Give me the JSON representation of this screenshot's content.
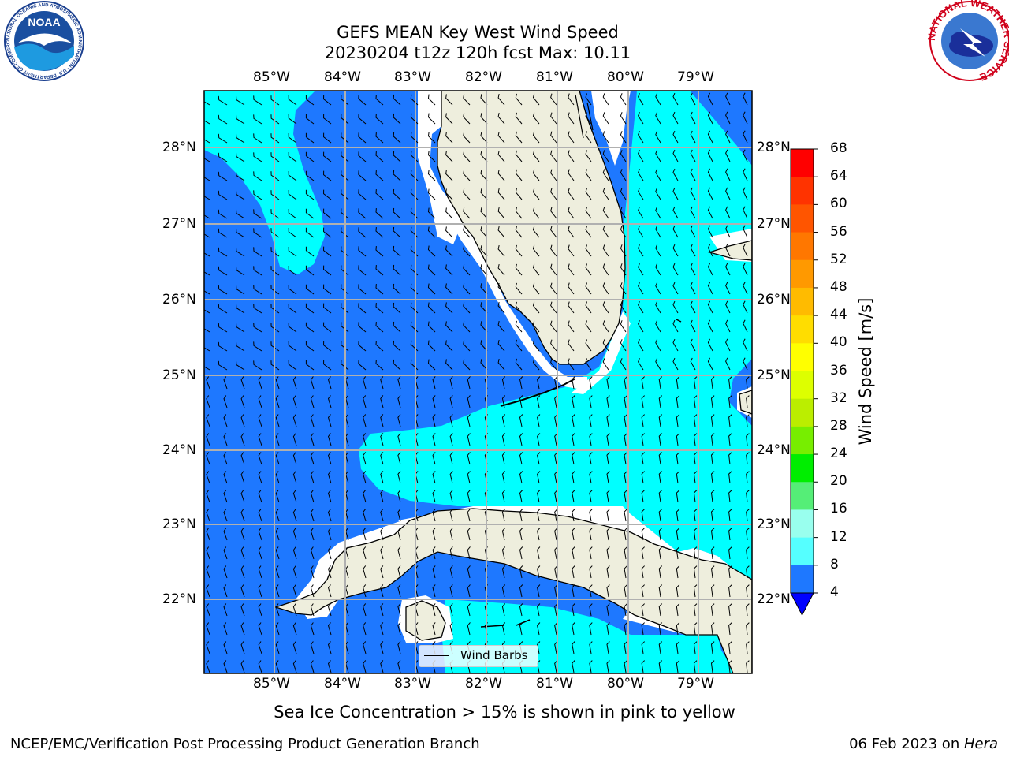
{
  "title": {
    "line1": "GEFS MEAN Key West Wind Speed",
    "line2": "20230204 t12z 120h fcst   Max: 10.11"
  },
  "map": {
    "lon_ticks": [
      "85°W",
      "84°W",
      "83°W",
      "82°W",
      "81°W",
      "80°W",
      "79°W"
    ],
    "lat_ticks": [
      "28°N",
      "27°N",
      "26°N",
      "25°N",
      "24°N",
      "23°N",
      "22°N"
    ],
    "legend_label": "Wind Barbs",
    "colors": {
      "land": "#eeeedd",
      "speed_4_8": "#1e78ff",
      "speed_8_12": "#00ffff",
      "ocean_white_gap": "#ffffff",
      "gridline": "#b0b0b0"
    }
  },
  "colorbar": {
    "label": "Wind Speed [m/s]",
    "ticks": [
      "68",
      "64",
      "60",
      "56",
      "52",
      "48",
      "44",
      "40",
      "36",
      "32",
      "28",
      "24",
      "20",
      "16",
      "12",
      "8",
      "4"
    ],
    "colors": [
      "#ff0000",
      "#ff3300",
      "#ff5500",
      "#ff7700",
      "#ff9900",
      "#ffbb00",
      "#ffdd00",
      "#ffff00",
      "#ddff00",
      "#bbee00",
      "#77ee00",
      "#00ee00",
      "#55ee77",
      "#99ffee",
      "#55ffff",
      "#00ffff",
      "#1e78ff"
    ],
    "extend_color": "#0000ff"
  },
  "caption": "Sea Ice Concentration > 15% is shown in pink to yellow",
  "footer": {
    "left": "NCEP/EMC/Verification Post Processing Product Generation Branch",
    "right_date": "06 Feb 2023 on ",
    "right_host": "Hera"
  },
  "logos": {
    "noaa_text": "NOAA",
    "noaa_ring": "NATIONAL OCEANIC AND ATMOSPHERIC ADMINISTRATION · U.S. DEPARTMENT OF COMMERCE",
    "nws_ring": "NATIONAL WEATHER SERVICE"
  }
}
